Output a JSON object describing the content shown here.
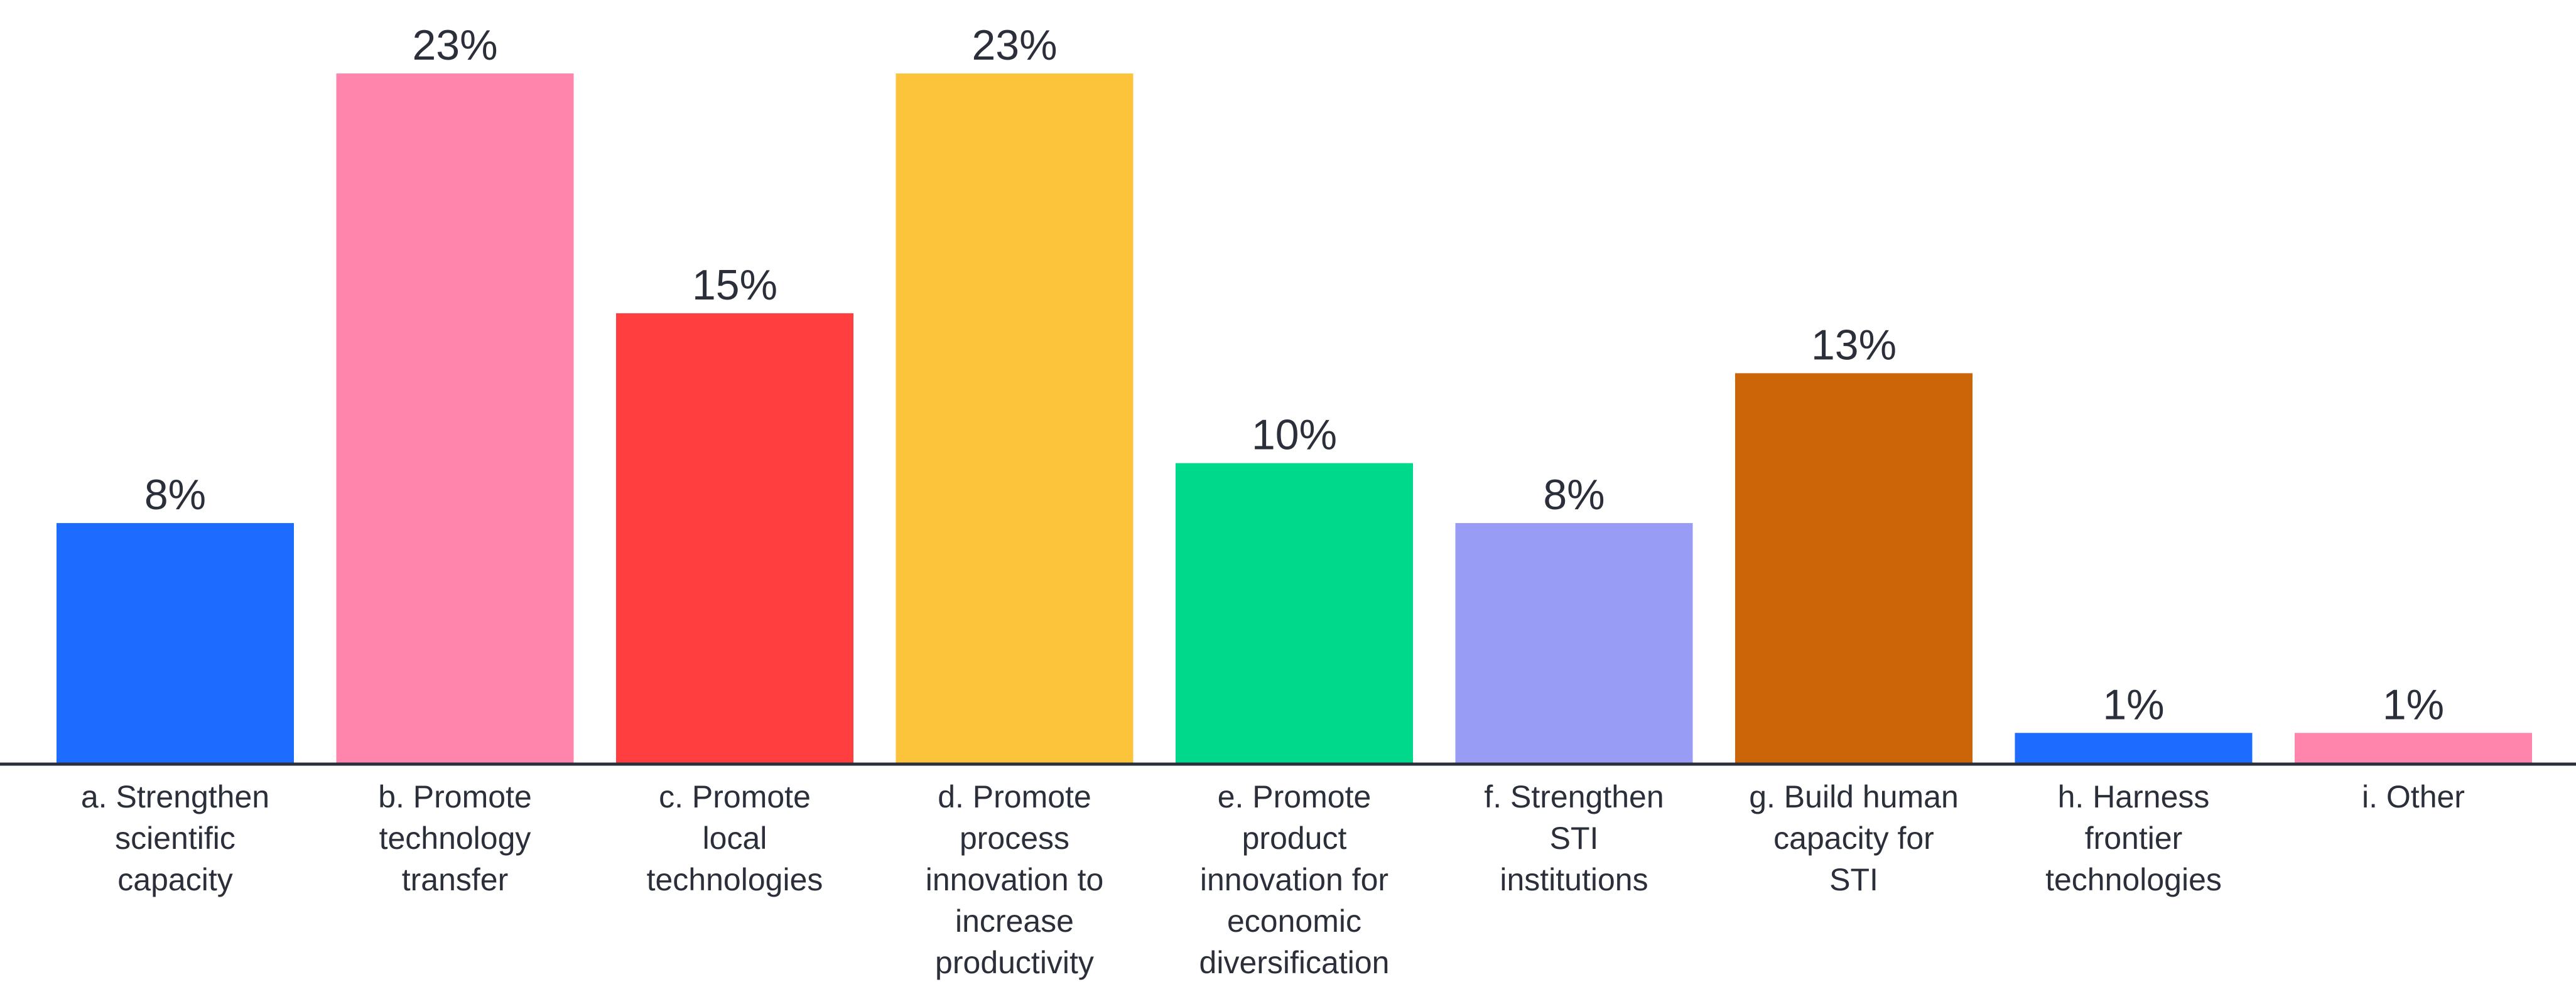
{
  "chart_data": {
    "type": "bar",
    "title": "",
    "xlabel": "",
    "ylabel": "",
    "ylim": [
      0,
      23
    ],
    "grid": false,
    "legend": "none",
    "categories": [
      "a. Strengthen scientific capacity",
      "b. Promote technology transfer",
      "c. Promote local technologies",
      "d. Promote process innovation to increase productivity",
      "e. Promote product innovation for economic diversification",
      "f. Strengthen STI institutions",
      "g. Build human capacity for STI",
      "h. Harness frontier technologies",
      "i. Other"
    ],
    "category_label_lines": [
      [
        "a. Strengthen",
        "scientific",
        "capacity"
      ],
      [
        "b. Promote",
        "technology",
        "transfer"
      ],
      [
        "c. Promote",
        "local",
        "technologies"
      ],
      [
        "d. Promote",
        "process",
        "innovation to",
        "increase",
        "productivity"
      ],
      [
        "e. Promote",
        "product",
        "innovation for",
        "economic",
        "diversification"
      ],
      [
        "f. Strengthen",
        "STI",
        "institutions"
      ],
      [
        "g. Build human",
        "capacity for",
        "STI"
      ],
      [
        "h. Harness",
        "frontier",
        "technologies"
      ],
      [
        "i. Other"
      ]
    ],
    "values": [
      8,
      23,
      15,
      23,
      10,
      8,
      13,
      1,
      1
    ],
    "data_labels": [
      "8%",
      "23%",
      "15%",
      "23%",
      "10%",
      "8%",
      "13%",
      "1%",
      "1%"
    ],
    "colors": [
      "#1e6bff",
      "#ff85ad",
      "#ff3f3f",
      "#fcc43a",
      "#00d98c",
      "#999cf5",
      "#cc6408",
      "#1e6bff",
      "#ff85ad"
    ],
    "axis_color": "#2b2f3a"
  }
}
